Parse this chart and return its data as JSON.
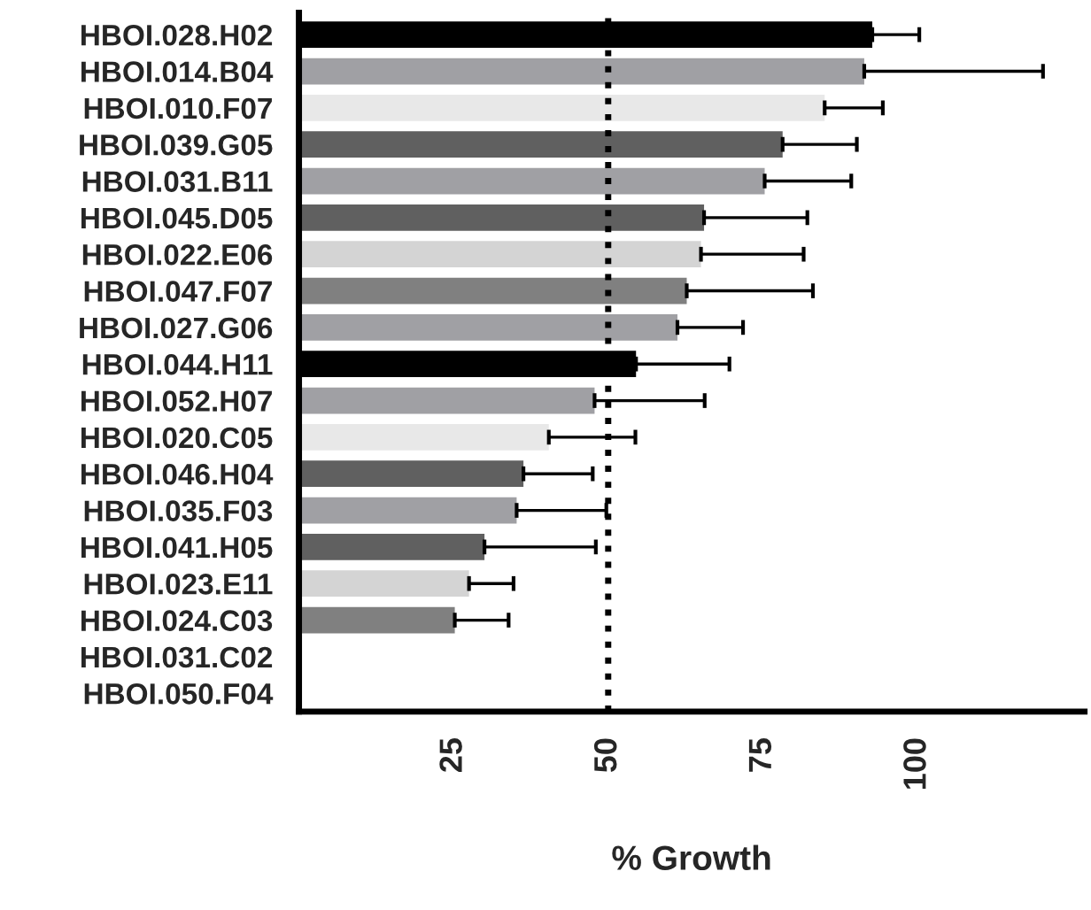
{
  "chart_data": {
    "type": "bar",
    "orientation": "horizontal",
    "xlabel": "% Growth",
    "categories": [
      "HBOI.028.H02",
      "HBOI.014.B04",
      "HBOI.010.F07",
      "HBOI.039.G05",
      "HBOI.031.B11",
      "HBOI.045.D05",
      "HBOI.022.E06",
      "HBOI.047.F07",
      "HBOI.027.G06",
      "HBOI.044.H11",
      "HBOI.052.H07",
      "HBOI.020.C05",
      "HBOI.046.H04",
      "HBOI.035.F03",
      "HBOI.041.H05",
      "HBOI.023.E11",
      "HBOI.024.C03",
      "HBOI.031.C02",
      "HBOI.050.F04"
    ],
    "values": [
      92.7,
      91.4,
      85.0,
      78.2,
      75.3,
      65.5,
      65.0,
      62.7,
      61.2,
      54.5,
      47.8,
      40.4,
      36.3,
      35.2,
      30.0,
      27.5,
      25.2,
      null,
      null
    ],
    "errors": [
      [
        92.7,
        100.3
      ],
      [
        91.4,
        120.3
      ],
      [
        85.0,
        94.4
      ],
      [
        78.2,
        90.2
      ],
      [
        75.3,
        89.3
      ],
      [
        65.5,
        82.2
      ],
      [
        65.0,
        81.6
      ],
      [
        62.7,
        83.1
      ],
      [
        61.2,
        71.8
      ],
      [
        54.5,
        69.6
      ],
      [
        47.8,
        65.6
      ],
      [
        40.4,
        54.4
      ],
      [
        36.3,
        47.5
      ],
      [
        35.2,
        49.7
      ],
      [
        30.0,
        48.0
      ],
      [
        27.5,
        34.7
      ],
      [
        25.2,
        33.9
      ],
      null,
      null
    ],
    "colors": [
      "#000000",
      "#a0a0a4",
      "#e8e8e8",
      "#606060",
      "#a0a0a4",
      "#606060",
      "#d4d4d4",
      "#808080",
      "#a0a0a4",
      "#000000",
      "#a0a0a4",
      "#e8e8e8",
      "#606060",
      "#a0a0a4",
      "#606060",
      "#d4d4d4",
      "#808080",
      "#808080",
      "#808080"
    ],
    "xlim": [
      0,
      127
    ],
    "xticks": [
      25,
      50,
      75,
      100
    ],
    "ref_lines": [
      {
        "axis": "x",
        "value": 50,
        "line_style": "dotted",
        "color": "#000000"
      }
    ],
    "grid": false,
    "legend": false
  }
}
